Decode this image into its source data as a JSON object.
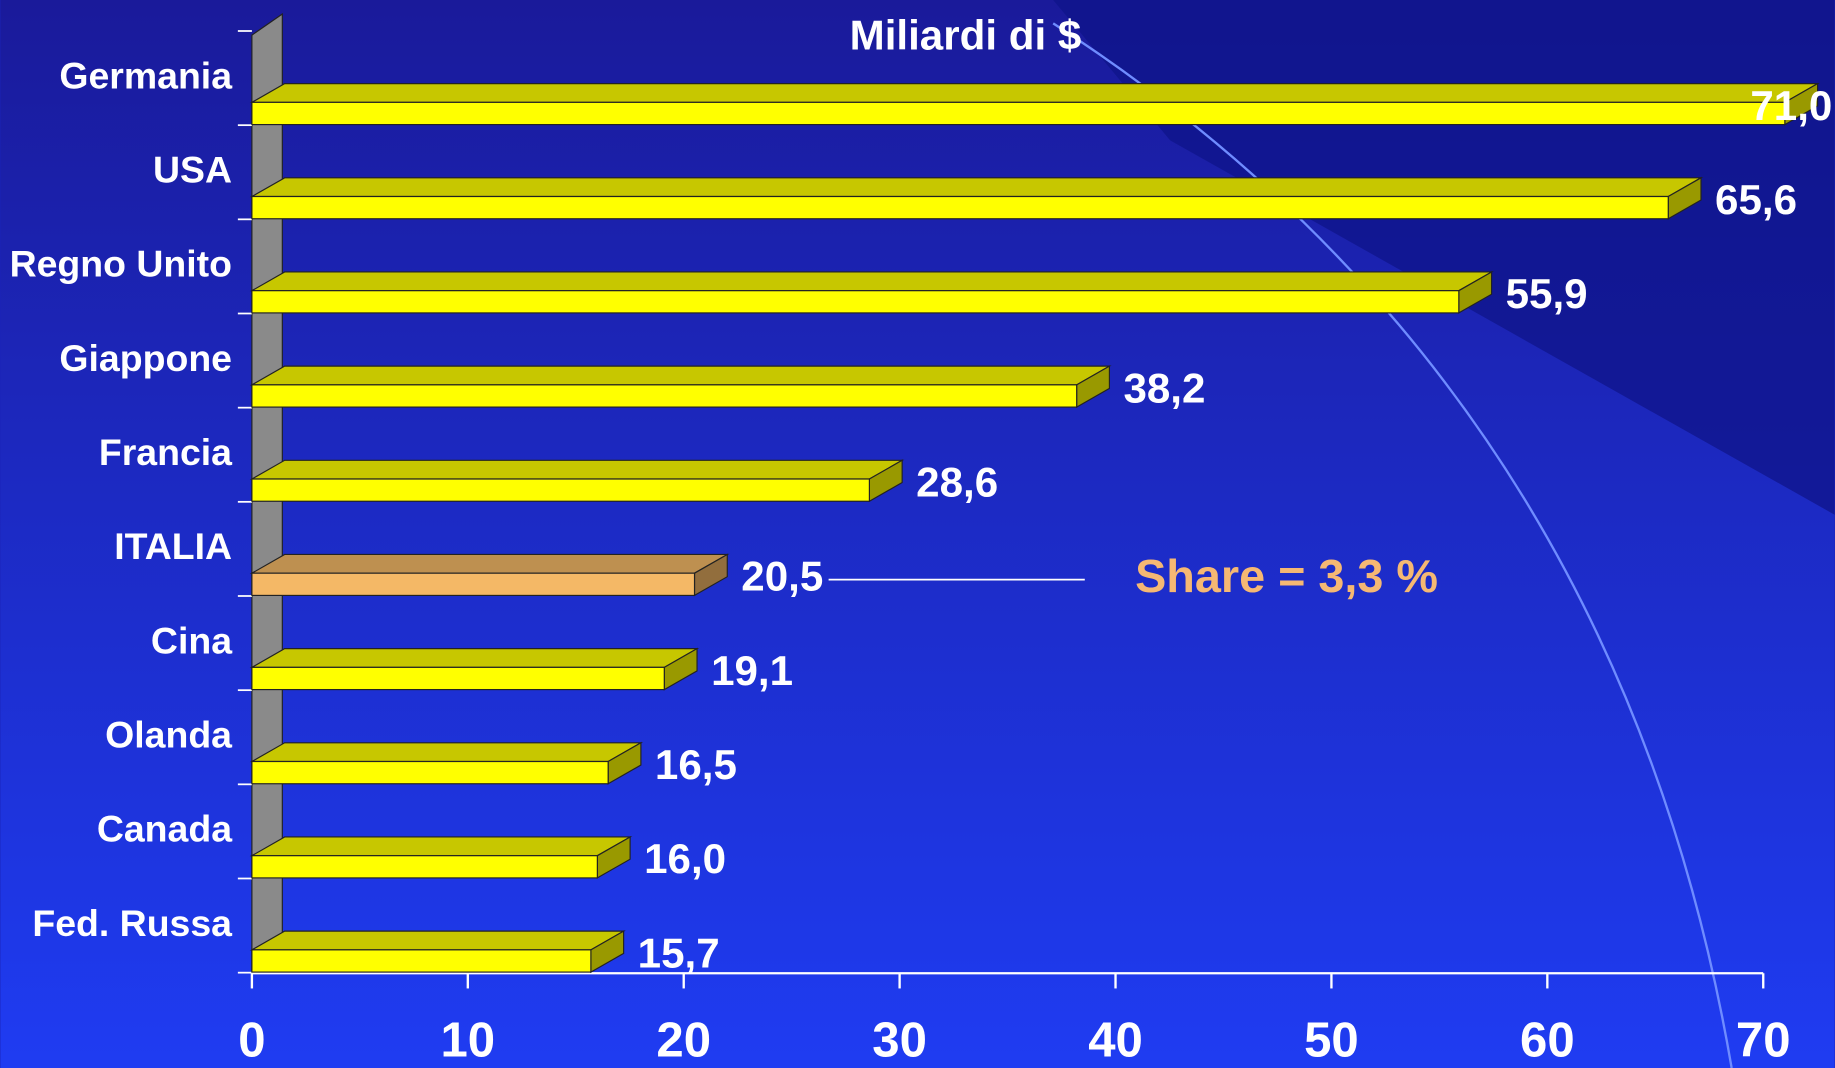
{
  "chart_data": {
    "type": "bar",
    "orientation": "horizontal",
    "title": "Miliardi di $",
    "categories": [
      "Germania",
      "USA",
      "Regno Unito",
      "Giappone",
      "Francia",
      "ITALIA",
      "Cina",
      "Olanda",
      "Canada",
      "Fed. Russa"
    ],
    "values": [
      71.0,
      65.6,
      55.9,
      38.2,
      28.6,
      20.5,
      19.1,
      16.5,
      16.0,
      15.7
    ],
    "value_labels": [
      "71,0",
      "65,6",
      "55,9",
      "38,2",
      "28,6",
      "20,5",
      "19,1",
      "16,5",
      "16,0",
      "15,7"
    ],
    "colors": [
      "#ffff00",
      "#ffff00",
      "#ffff00",
      "#ffff00",
      "#ffff00",
      "#f4b866",
      "#ffff00",
      "#ffff00",
      "#ffff00",
      "#ffff00"
    ],
    "xlim": [
      0,
      70
    ],
    "xticks": [
      0,
      10,
      20,
      30,
      40,
      50,
      60,
      70
    ],
    "annotations": [
      {
        "text": "Share = 3,3 %",
        "category": "ITALIA",
        "color": "#f5b873"
      }
    ]
  }
}
